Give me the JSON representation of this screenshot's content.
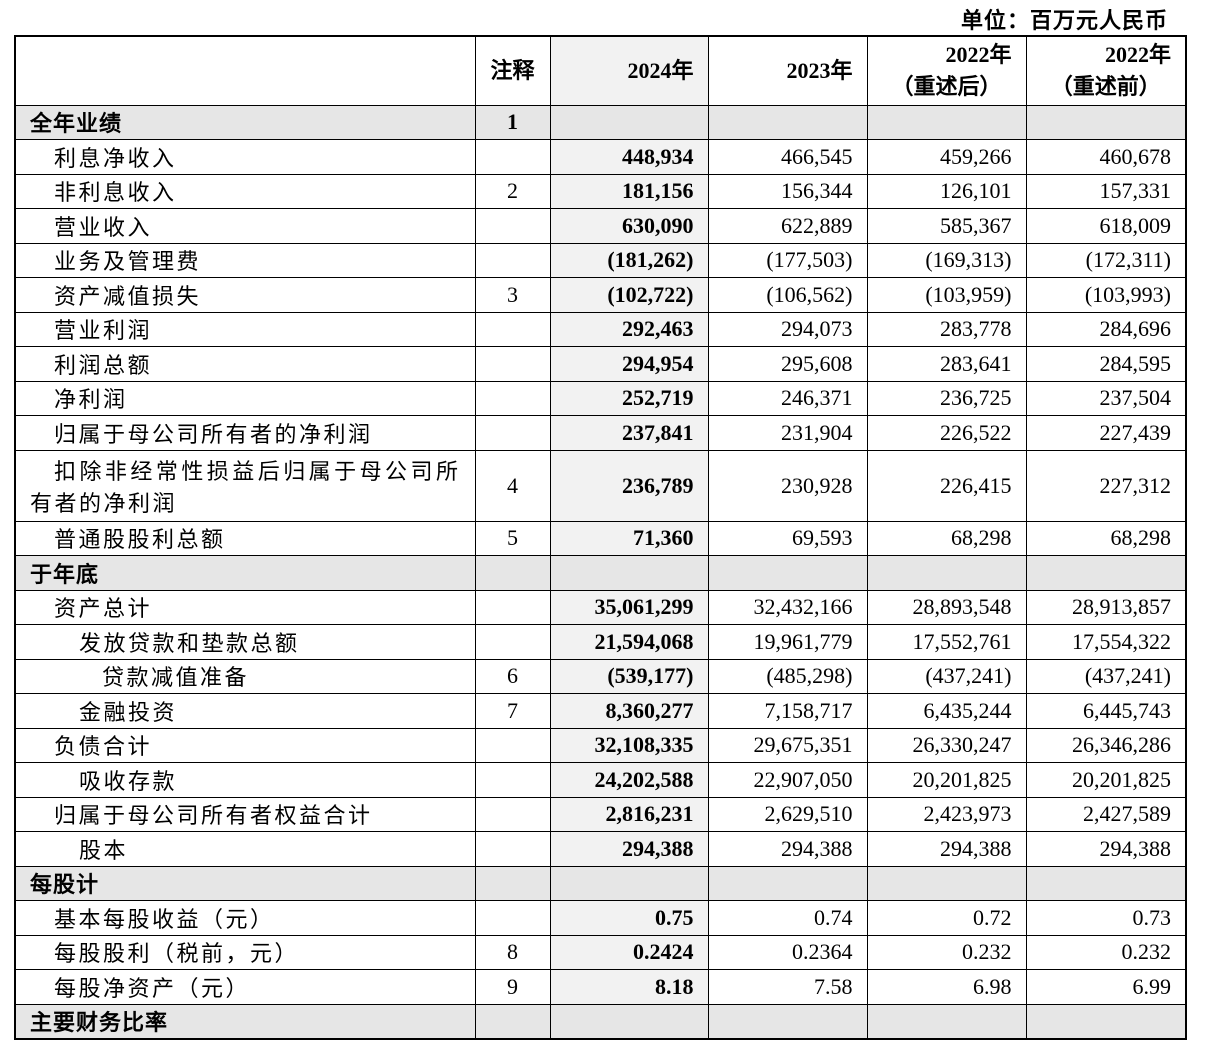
{
  "header": {
    "unit": "单位：百万元人民币",
    "columns": [
      [
        "注释"
      ],
      [
        "2024年"
      ],
      [
        "2023年"
      ],
      [
        "2022年",
        "（重述后）"
      ],
      [
        "2022年",
        "（重述前）"
      ]
    ]
  },
  "rows": [
    {
      "section": "全年业绩",
      "note": "1"
    },
    {
      "label": "利息净收入",
      "values": [
        "448,934",
        "466,545",
        "459,266",
        "460,678"
      ]
    },
    {
      "label": "非利息收入",
      "note": "2",
      "values": [
        "181,156",
        "156,344",
        "126,101",
        "157,331"
      ]
    },
    {
      "label": "营业收入",
      "values": [
        "630,090",
        "622,889",
        "585,367",
        "618,009"
      ]
    },
    {
      "label": "业务及管理费",
      "values": [
        "(181,262)",
        "(177,503)",
        "(169,313)",
        "(172,311)"
      ]
    },
    {
      "label": "资产减值损失",
      "note": "3",
      "values": [
        "(102,722)",
        "(106,562)",
        "(103,959)",
        "(103,993)"
      ]
    },
    {
      "label": "营业利润",
      "values": [
        "292,463",
        "294,073",
        "283,778",
        "284,696"
      ]
    },
    {
      "label": "利润总额",
      "values": [
        "294,954",
        "295,608",
        "283,641",
        "284,595"
      ]
    },
    {
      "label": "净利润",
      "values": [
        "252,719",
        "246,371",
        "236,725",
        "237,504"
      ]
    },
    {
      "label": "归属于母公司所有者的净利润",
      "values": [
        "237,841",
        "231,904",
        "226,522",
        "227,439"
      ]
    },
    {
      "label": "扣除非经常性损益后归属于母公司所有者的净利润",
      "note": "4",
      "values": [
        "236,789",
        "230,928",
        "226,415",
        "227,312"
      ]
    },
    {
      "label": "普通股股利总额",
      "note": "5",
      "values": [
        "71,360",
        "69,593",
        "68,298",
        "68,298"
      ]
    },
    {
      "section": "于年底"
    },
    {
      "label": "资产总计",
      "values": [
        "35,061,299",
        "32,432,166",
        "28,893,548",
        "28,913,857"
      ]
    },
    {
      "label": "发放贷款和垫款总额",
      "values": [
        "21,594,068",
        "19,961,779",
        "17,552,761",
        "17,554,322"
      ]
    },
    {
      "label": "贷款减值准备",
      "note": "6",
      "values": [
        "(539,177)",
        "(485,298)",
        "(437,241)",
        "(437,241)"
      ]
    },
    {
      "label": "金融投资",
      "note": "7",
      "values": [
        "8,360,277",
        "7,158,717",
        "6,435,244",
        "6,445,743"
      ]
    },
    {
      "label": "负债合计",
      "values": [
        "32,108,335",
        "29,675,351",
        "26,330,247",
        "26,346,286"
      ]
    },
    {
      "label": "吸收存款",
      "values": [
        "24,202,588",
        "22,907,050",
        "20,201,825",
        "20,201,825"
      ]
    },
    {
      "label": "归属于母公司所有者权益合计",
      "values": [
        "2,816,231",
        "2,629,510",
        "2,423,973",
        "2,427,589"
      ]
    },
    {
      "label": "股本",
      "values": [
        "294,388",
        "294,388",
        "294,388",
        "294,388"
      ]
    },
    {
      "section": "每股计"
    },
    {
      "label": "基本每股收益（元）",
      "values": [
        "0.75",
        "0.74",
        "0.72",
        "0.73"
      ]
    },
    {
      "label": "每股股利（税前，元）",
      "note": "8",
      "values": [
        "0.2424",
        "0.2364",
        "0.232",
        "0.232"
      ]
    },
    {
      "label": "每股净资产（元）",
      "note": "9",
      "values": [
        "8.18",
        "7.58",
        "6.98",
        "6.99"
      ]
    },
    {
      "section": "主要财务比率"
    }
  ]
}
